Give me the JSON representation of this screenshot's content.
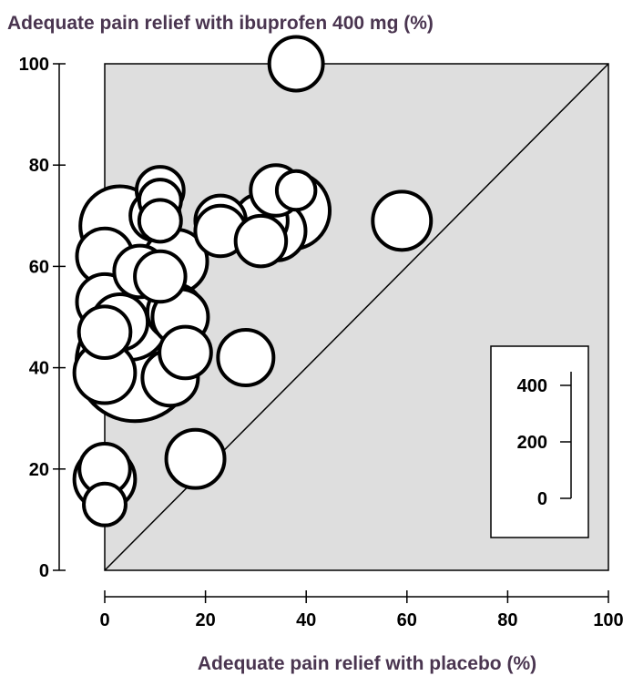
{
  "chart_data": {
    "type": "scatter",
    "ylabel": "Adequate pain relief with ibuprofen 400 mg (%)",
    "xlabel": "Adequate pain relief with placebo (%)",
    "xlim": [
      0,
      100
    ],
    "ylim": [
      0,
      100
    ],
    "x_ticks": [
      "0",
      "20",
      "40",
      "60",
      "80",
      "100"
    ],
    "y_ticks": [
      "0",
      "20",
      "40",
      "60",
      "80",
      "100"
    ],
    "plot_background": "#dedede",
    "diagonal_line": true,
    "size_legend": {
      "labels": [
        "400",
        "200",
        "0"
      ],
      "values": [
        400,
        200,
        0
      ]
    },
    "points": [
      {
        "x": 38,
        "y": 100,
        "n": 90
      },
      {
        "x": 11,
        "y": 75,
        "n": 60
      },
      {
        "x": 38,
        "y": 75,
        "n": 30
      },
      {
        "x": 34,
        "y": 75,
        "n": 75
      },
      {
        "x": 11,
        "y": 73,
        "n": 40
      },
      {
        "x": 37,
        "y": 71,
        "n": 250
      },
      {
        "x": 10,
        "y": 70,
        "n": 70
      },
      {
        "x": 11,
        "y": 69,
        "n": 40
      },
      {
        "x": 23,
        "y": 69,
        "n": 75
      },
      {
        "x": 31,
        "y": 69,
        "n": 90
      },
      {
        "x": 59,
        "y": 69,
        "n": 115
      },
      {
        "x": 3,
        "y": 68,
        "n": 265
      },
      {
        "x": 34,
        "y": 67,
        "n": 120
      },
      {
        "x": 23,
        "y": 67,
        "n": 75
      },
      {
        "x": 31,
        "y": 65,
        "n": 75
      },
      {
        "x": 0,
        "y": 62,
        "n": 100
      },
      {
        "x": 14,
        "y": 61,
        "n": 150
      },
      {
        "x": 7,
        "y": 59,
        "n": 80
      },
      {
        "x": 11,
        "y": 58,
        "n": 75
      },
      {
        "x": 0,
        "y": 53,
        "n": 100
      },
      {
        "x": 14,
        "y": 51,
        "n": 100
      },
      {
        "x": 15,
        "y": 50,
        "n": 100
      },
      {
        "x": 5,
        "y": 49,
        "n": 235
      },
      {
        "x": 3,
        "y": 49,
        "n": 100
      },
      {
        "x": 0,
        "y": 47,
        "n": 80
      },
      {
        "x": 6,
        "y": 41,
        "n": 700
      },
      {
        "x": 16,
        "y": 43,
        "n": 80
      },
      {
        "x": 28,
        "y": 42,
        "n": 100
      },
      {
        "x": 0,
        "y": 39,
        "n": 130
      },
      {
        "x": 13,
        "y": 38,
        "n": 100
      },
      {
        "x": 18,
        "y": 22,
        "n": 115
      },
      {
        "x": 0,
        "y": 20,
        "n": 75
      },
      {
        "x": 0,
        "y": 18,
        "n": 130
      },
      {
        "x": 0,
        "y": 13,
        "n": 40
      }
    ]
  }
}
